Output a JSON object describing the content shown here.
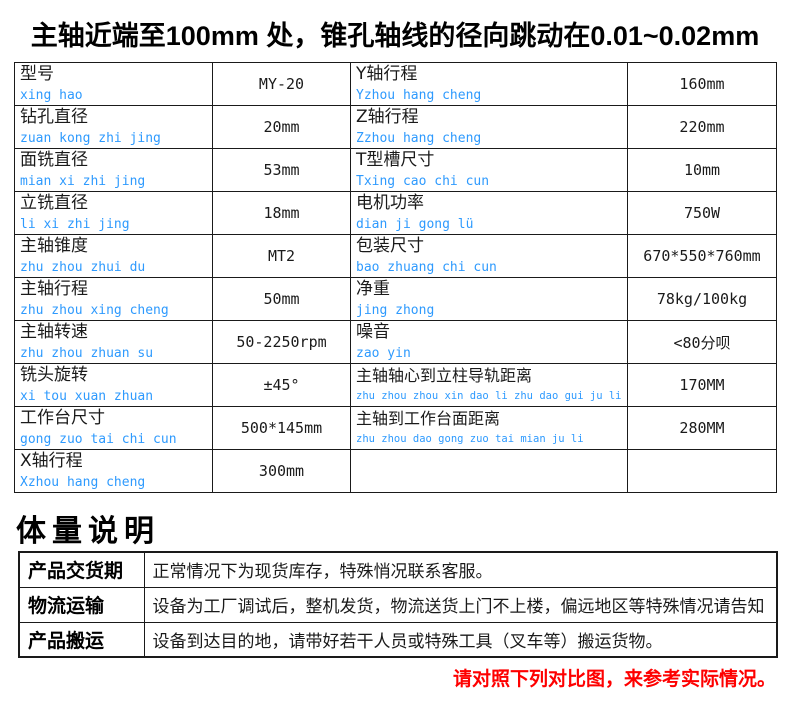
{
  "title": "主轴近端至100mm 处，锥孔轴线的径向跳动在0.01~0.02mm",
  "colors": {
    "pinyin_blue": "#2e9afe",
    "note_red": "#fe0000"
  },
  "spec_table": {
    "rows": [
      {
        "label": "型号",
        "pinyin": "xing hao",
        "value": "MY-20",
        "label2": "Y轴行程",
        "pinyin2": "Yzhou hang cheng",
        "value2": "160mm"
      },
      {
        "label": "钻孔直径",
        "pinyin": "zuan kong zhi jing",
        "value": "20mm",
        "label2": "Z轴行程",
        "pinyin2": "Zzhou hang cheng",
        "value2": "220mm"
      },
      {
        "label": "面铣直径",
        "pinyin": "mian xi zhi jing",
        "value": "53mm",
        "label2": "T型槽尺寸",
        "pinyin2": "Txing cao chi cun",
        "value2": "10mm"
      },
      {
        "label": "立铣直径",
        "pinyin": "li xi zhi jing",
        "value": "18mm",
        "label2": "电机功率",
        "pinyin2": "dian ji gong lü",
        "value2": "750W"
      },
      {
        "label": "主轴锥度",
        "pinyin": "zhu zhou zhui du",
        "value": "MT2",
        "label2": "包装尺寸",
        "pinyin2": "bao zhuang chi cun",
        "value2": "670*550*760mm"
      },
      {
        "label": "主轴行程",
        "pinyin": "zhu zhou xing cheng",
        "value": "50mm",
        "label2": "净重",
        "pinyin2": "jing zhong",
        "value2": "78kg/100kg"
      },
      {
        "label": "主轴转速",
        "pinyin": "zhu zhou zhuan su",
        "value": "50-2250rpm",
        "label2": "噪音",
        "pinyin2": "zao yin",
        "value2": "<80分呗"
      },
      {
        "label": "铣头旋转",
        "pinyin": "xi tou xuan zhuan",
        "value": "±45°",
        "label2": "主轴轴心到立柱导轨距离",
        "pinyin2": "zhu zhou zhou xin dao li zhu dao gui ju li",
        "value2": "170MM"
      },
      {
        "label": "工作台尺寸",
        "pinyin": "gong zuo tai chi cun",
        "value": "500*145mm",
        "label2": "主轴到工作台面距离",
        "pinyin2": "zhu zhou dao gong zuo tai mian ju li",
        "value2": "280MM"
      },
      {
        "label": "X轴行程",
        "pinyin": "Xzhou hang cheng",
        "value": "300mm",
        "label2": "",
        "pinyin2": "",
        "value2": ""
      }
    ]
  },
  "volume_section": {
    "heading": "体量说明",
    "rows": [
      {
        "label": "产品交货期",
        "content": "正常情况下为现货库存，特殊悄况联系客服。"
      },
      {
        "label": "物流运输",
        "content": "设备为工厂调试后，整机发货，物流送货上门不上楼，偏远地区等特殊情况请告知"
      },
      {
        "label": "产品搬运",
        "content": "设备到达目的地，请带好若干人员或特殊工具（叉车等）搬运货物。"
      }
    ]
  },
  "footer_note": "请对照下列对比图，来参考实际情况。"
}
